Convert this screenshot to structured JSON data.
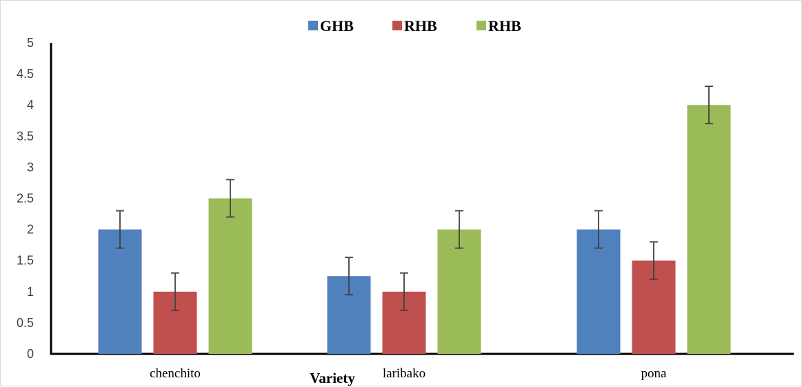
{
  "chart_data": {
    "type": "bar",
    "title": "",
    "xlabel": "Variety",
    "ylabel": "",
    "categories": [
      "chenchito",
      "laribako",
      "pona"
    ],
    "series": [
      {
        "name": "GHB",
        "color": "#4f81bd",
        "values": [
          2,
          1.25,
          2
        ],
        "errors": [
          0.3,
          0.3,
          0.3
        ]
      },
      {
        "name": "RHB",
        "color": "#c0504d",
        "values": [
          1,
          1,
          1.5
        ],
        "errors": [
          0.3,
          0.3,
          0.3
        ]
      },
      {
        "name": "RHB",
        "color": "#9bbb59",
        "values": [
          2.5,
          2,
          4
        ],
        "errors": [
          0.3,
          0.3,
          0.3
        ]
      }
    ],
    "ylim": [
      0,
      5
    ],
    "yticks": [
      "0",
      "0.5",
      "1",
      "1.5",
      "2",
      "2.5",
      "3",
      "3.5",
      "4",
      "4.5",
      "5"
    ],
    "grid": false,
    "legend_position": "top"
  }
}
